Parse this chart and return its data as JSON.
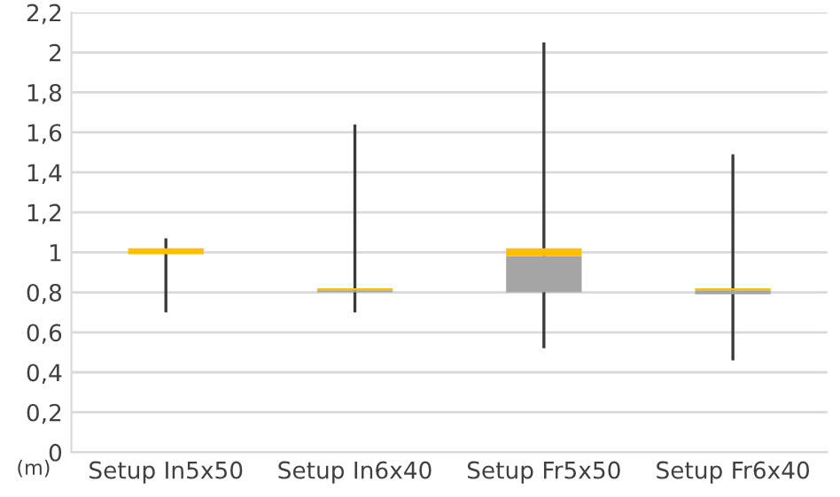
{
  "chart_data": {
    "type": "box",
    "ylabel": "(m)",
    "categories": [
      "Setup In5x50",
      "Setup In6x40",
      "Setup Fr5x50",
      "Setup Fr6x40"
    ],
    "boxes": [
      {
        "low": 0.7,
        "q1": 0.99,
        "median": 0.99,
        "q3": 1.02,
        "high": 1.07
      },
      {
        "low": 0.7,
        "q1": 0.8,
        "median": 0.81,
        "q3": 0.82,
        "high": 1.64
      },
      {
        "low": 0.52,
        "q1": 0.8,
        "median": 0.98,
        "q3": 1.02,
        "high": 2.05
      },
      {
        "low": 0.46,
        "q1": 0.79,
        "median": 0.81,
        "q3": 0.82,
        "high": 1.49
      }
    ],
    "colors": [
      "#ffc000",
      "#a5a5a5",
      "#a5a5a5",
      "#a5a5a5"
    ],
    "color": "#ffc000",
    "ylim": [
      0,
      2.2
    ],
    "yticks": [
      0,
      {
        "value": 0.2,
        "label": "0,2"
      },
      {
        "value": 0.4,
        "label": "0,4"
      },
      {
        "value": 0.6,
        "label": "0,6"
      },
      {
        "value": 0.8,
        "label": "0,8"
      },
      1,
      {
        "value": 1.2,
        "label": "1,2"
      },
      {
        "value": 1.4,
        "label": "1,4"
      },
      {
        "value": 1.6,
        "label": "1,6"
      },
      {
        "value": 1.8,
        "label": "1,8"
      },
      2,
      {
        "value": 2.2,
        "label": "2,2"
      }
    ],
    "grid": "y"
  }
}
